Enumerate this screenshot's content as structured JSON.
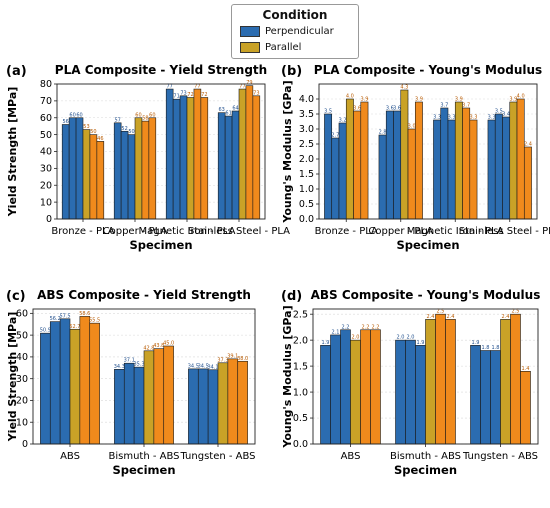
{
  "legend": {
    "title": "Condition",
    "items": [
      {
        "label": "Perpendicular",
        "color": "#2b6cb0"
      },
      {
        "label": "Parallel",
        "color": "#c9a227"
      }
    ]
  },
  "chart_data": [
    {
      "type": "bar",
      "panel_label": "(a)",
      "title": "PLA Composite - Yield Strength",
      "xlabel": "Specimen",
      "ylabel": "Yield Strength [MPa]",
      "ylim": [
        0,
        80
      ],
      "yticks": [
        0,
        10,
        20,
        30,
        40,
        50,
        60,
        70,
        80
      ],
      "categories": [
        "Bronze - PLA",
        "Copper - PLA",
        "Magnetic Iron - PLA",
        "Stainless Steel - PLA"
      ],
      "groups": [
        {
          "category": "Bronze - PLA",
          "perpendicular": [
            56,
            60,
            60
          ],
          "parallel": [
            53,
            50,
            46
          ]
        },
        {
          "category": "Copper - PLA",
          "perpendicular": [
            57,
            52,
            50
          ],
          "parallel": [
            60,
            58,
            60
          ]
        },
        {
          "category": "Magnetic Iron - PLA",
          "perpendicular": [
            77,
            71,
            73
          ],
          "parallel": [
            72,
            77,
            72
          ]
        },
        {
          "category": "Stainless Steel - PLA",
          "perpendicular": [
            63,
            61,
            64
          ],
          "parallel": [
            77,
            79,
            73
          ]
        }
      ],
      "value_labels_perpendicular": [
        [
          "56",
          "60",
          "60"
        ],
        [
          "57",
          "52",
          "50"
        ],
        [
          "77",
          "71",
          "73"
        ],
        [
          "63",
          "61",
          "64"
        ]
      ],
      "value_labels_parallel": [
        [
          "53",
          "50",
          "46"
        ],
        [
          "60",
          "58",
          "60"
        ],
        [
          "72",
          "77",
          "72"
        ],
        [
          "77",
          "79",
          "73"
        ]
      ],
      "grid": "y"
    },
    {
      "type": "bar",
      "panel_label": "(b)",
      "title": "PLA Composite - Young's Modulus",
      "xlabel": "Specimen",
      "ylabel": "Young's Modulus [GPa]",
      "ylim": [
        0,
        4.5
      ],
      "yticks": [
        0.0,
        0.5,
        1.0,
        1.5,
        2.0,
        2.5,
        3.0,
        3.5,
        4.0
      ],
      "categories": [
        "Bronze - PLA",
        "Copper - PLA",
        "Magnetic Iron - PLA",
        "Stainless Steel - PLA"
      ],
      "groups": [
        {
          "category": "Bronze - PLA",
          "perpendicular": [
            3.5,
            2.7,
            3.2
          ],
          "parallel": [
            4.0,
            3.6,
            3.9
          ]
        },
        {
          "category": "Copper - PLA",
          "perpendicular": [
            2.8,
            3.6,
            3.6
          ],
          "parallel": [
            4.3,
            3.0,
            3.9
          ]
        },
        {
          "category": "Magnetic Iron - PLA",
          "perpendicular": [
            3.3,
            3.7,
            3.3
          ],
          "parallel": [
            3.9,
            3.7,
            3.3
          ]
        },
        {
          "category": "Stainless Steel - PLA",
          "perpendicular": [
            3.3,
            3.5,
            3.4
          ],
          "parallel": [
            3.9,
            4.0,
            2.4
          ]
        }
      ],
      "value_labels_perpendicular": [
        [
          "3.5",
          "2.7",
          "3.2"
        ],
        [
          "2.8",
          "3.6",
          "3.6"
        ],
        [
          "3.3",
          "3.7",
          "3.3"
        ],
        [
          "3.3",
          "3.5",
          "3.4"
        ]
      ],
      "value_labels_parallel": [
        [
          "4.0",
          "3.6",
          "3.9"
        ],
        [
          "4.3",
          "3.0",
          "3.9"
        ],
        [
          "3.9",
          "3.7",
          "3.3"
        ],
        [
          "3.9",
          "4.0",
          "2.4"
        ]
      ],
      "grid": "y"
    },
    {
      "type": "bar",
      "panel_label": "(c)",
      "title": "ABS Composite - Yield Strength",
      "xlabel": "Specimen",
      "ylabel": "Yield Strength [MPa]",
      "ylim": [
        0,
        62
      ],
      "yticks": [
        0,
        10,
        20,
        30,
        40,
        50,
        60
      ],
      "categories": [
        "ABS",
        "Bismuth - ABS",
        "Tungsten - ABS"
      ],
      "groups": [
        {
          "category": "ABS",
          "perpendicular": [
            50.9,
            56.2,
            57.5
          ],
          "parallel": [
            52.7,
            58.6,
            55.5
          ]
        },
        {
          "category": "Bismuth - ABS",
          "perpendicular": [
            34.3,
            37.1,
            35.3
          ],
          "parallel": [
            42.8,
            43.8,
            45.0
          ]
        },
        {
          "category": "Tungsten - ABS",
          "perpendicular": [
            34.5,
            34.5,
            34.1
          ],
          "parallel": [
            37.3,
            39.1,
            38.0
          ]
        }
      ],
      "value_labels_perpendicular": [
        [
          "50.9",
          "56.2",
          "57.5"
        ],
        [
          "34.3",
          "37.1",
          "35.3"
        ],
        [
          "34.5",
          "34.5",
          "34.1"
        ]
      ],
      "value_labels_parallel": [
        [
          "52.7",
          "58.6",
          "55.5"
        ],
        [
          "42.8",
          "43.8",
          "45.0"
        ],
        [
          "37.3",
          "39.1",
          "38.0"
        ]
      ],
      "grid": "y"
    },
    {
      "type": "bar",
      "panel_label": "(d)",
      "title": "ABS Composite - Young's Modulus",
      "xlabel": "Specimen",
      "ylabel": "Young's Modulus [GPa]",
      "ylim": [
        0,
        2.6
      ],
      "yticks": [
        0.0,
        0.5,
        1.0,
        1.5,
        2.0,
        2.5
      ],
      "categories": [
        "ABS",
        "Bismuth - ABS",
        "Tungsten - ABS"
      ],
      "groups": [
        {
          "category": "ABS",
          "perpendicular": [
            1.9,
            2.1,
            2.2
          ],
          "parallel": [
            2.0,
            2.2,
            2.2
          ]
        },
        {
          "category": "Bismuth - ABS",
          "perpendicular": [
            2.0,
            2.0,
            1.9
          ],
          "parallel": [
            2.4,
            2.5,
            2.4
          ]
        },
        {
          "category": "Tungsten - ABS",
          "perpendicular": [
            1.9,
            1.8,
            1.8
          ],
          "parallel": [
            2.4,
            2.5,
            1.4
          ]
        }
      ],
      "value_labels_perpendicular": [
        [
          "1.9",
          "2.1",
          "2.2"
        ],
        [
          "2.0",
          "2.0",
          "1.9"
        ],
        [
          "1.9",
          "1.8",
          "1.8"
        ]
      ],
      "value_labels_parallel": [
        [
          "2.0",
          "2.2",
          "2.2"
        ],
        [
          "2.4",
          "2.5",
          "2.4"
        ],
        [
          "2.4",
          "2.5",
          "1.4"
        ]
      ],
      "grid": "y"
    }
  ]
}
